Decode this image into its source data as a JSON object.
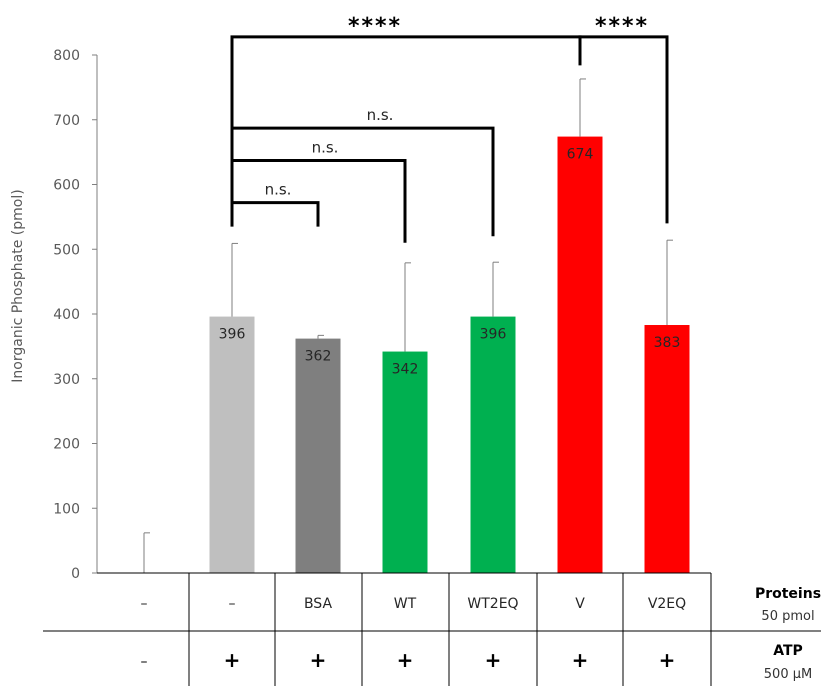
{
  "chart_data": {
    "type": "bar",
    "title": "",
    "ylabel": "Inorganic Phosphate (pmol)",
    "ylim": [
      0,
      800
    ],
    "yticks": [
      0,
      100,
      200,
      300,
      400,
      500,
      600,
      700,
      800
    ],
    "grid": false,
    "bars": [
      {
        "protein": "–",
        "atp": "–",
        "value": 0,
        "error": 62,
        "label": "",
        "color": "#ffffff"
      },
      {
        "protein": "–",
        "atp": "+",
        "value": 396,
        "error": 113,
        "label": "396",
        "color": "#bfbfbf"
      },
      {
        "protein": "BSA",
        "atp": "+",
        "value": 362,
        "error": 5,
        "label": "362",
        "color": "#7f7f7f"
      },
      {
        "protein": "WT",
        "atp": "+",
        "value": 342,
        "error": 137,
        "label": "342",
        "color": "#00b050"
      },
      {
        "protein": "WT2EQ",
        "atp": "+",
        "value": 396,
        "error": 84,
        "label": "396",
        "color": "#00b050"
      },
      {
        "protein": "V",
        "atp": "+",
        "value": 674,
        "error": 89,
        "label": "674",
        "color": "#ff0000"
      },
      {
        "protein": "V2EQ",
        "atp": "+",
        "value": 383,
        "error": 131,
        "label": "383",
        "color": "#ff0000"
      }
    ],
    "significance": [
      {
        "from": 1,
        "to": 2,
        "label": "n.s.",
        "top": 572,
        "left_end": 550,
        "right_end": 535,
        "bold": false
      },
      {
        "from": 1,
        "to": 3,
        "label": "n.s.",
        "top": 637,
        "left_end": 550,
        "right_end": 510,
        "bold": false
      },
      {
        "from": 1,
        "to": 4,
        "label": "n.s.",
        "top": 687,
        "left_end": 637,
        "right_end": 520,
        "bold": false
      },
      {
        "from": 1,
        "to": 5,
        "label": "****",
        "top": 828,
        "left_end": 535,
        "right_end": 788,
        "bold": true
      },
      {
        "from": 5,
        "to": 6,
        "label": "****",
        "top": 828,
        "left_end": 784,
        "right_end": 540,
        "bold": true
      }
    ],
    "table": {
      "row1_label": "Proteins",
      "row1_sub": "50 pmol",
      "row2_label": "ATP",
      "row2_sub": "500 μM"
    }
  }
}
